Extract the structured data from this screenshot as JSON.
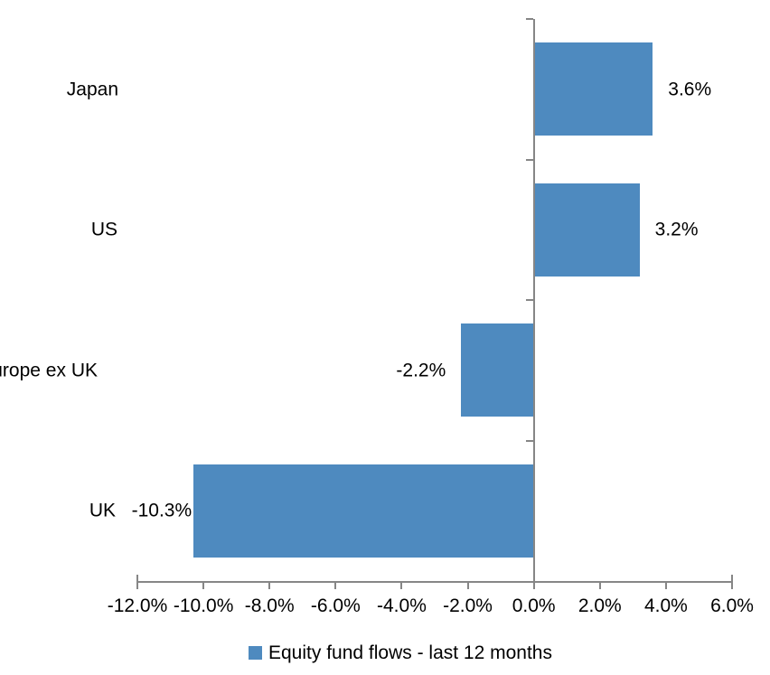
{
  "chart_data": {
    "type": "bar",
    "orientation": "horizontal",
    "categories": [
      "Japan",
      "US",
      "Europe ex UK",
      "UK"
    ],
    "values": [
      3.6,
      3.2,
      -2.2,
      -10.3
    ],
    "data_labels": [
      "3.6%",
      "3.2%",
      "-2.2%",
      "-10.3%"
    ],
    "series": [
      {
        "name": "Equity fund flows - last 12 months",
        "values": [
          3.6,
          3.2,
          -2.2,
          -10.3
        ]
      }
    ],
    "legend": {
      "label": "Equity fund flows - last 12 months",
      "position": "bottom"
    },
    "x_axis": {
      "min": -12,
      "max": 6,
      "tick_values": [
        -12,
        -10,
        -8,
        -6,
        -4,
        -2,
        0,
        2,
        4,
        6
      ],
      "tick_labels": [
        "-12.0%",
        "-10.0%",
        "-8.0%",
        "-6.0%",
        "-4.0%",
        "-2.0%",
        "0.0%",
        "2.0%",
        "4.0%",
        "6.0%"
      ]
    },
    "grid": false,
    "title": "",
    "colors": {
      "bar": "#4E8ABF",
      "axis": "#868686",
      "text": "#000000",
      "background": "#FFFFFF"
    }
  }
}
